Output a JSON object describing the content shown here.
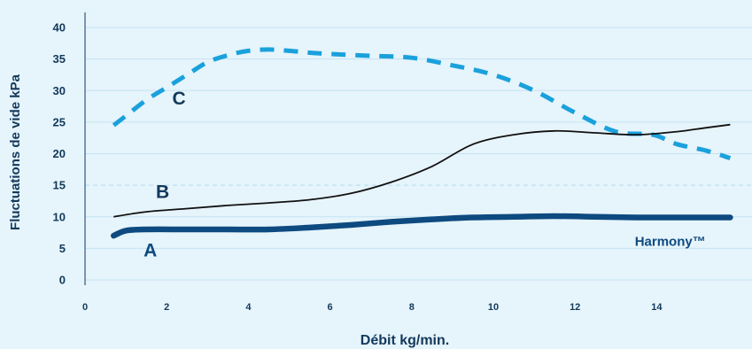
{
  "chart_data": {
    "type": "line",
    "xlabel": "Débit kg/min.",
    "ylabel": "Fluctuations de vide kPa",
    "xlim": [
      0,
      16
    ],
    "ylim": [
      0,
      40
    ],
    "x_ticks": [
      "0",
      "2",
      "4",
      "6",
      "8",
      "10",
      "12",
      "14"
    ],
    "y_ticks": [
      "0",
      "5",
      "10",
      "15",
      "20",
      "25",
      "30",
      "35",
      "40"
    ],
    "grid": true,
    "reference_line": 15,
    "colors": {
      "background": "#e6f4fb",
      "grid": "#c4e3f3",
      "axis": "#12395b",
      "A": "#0d4a80",
      "B": "#111111",
      "C": "#1aa1dc"
    },
    "series": [
      {
        "name": "C",
        "style": "dashed",
        "x": [
          0.7,
          1.0,
          1.5,
          2.0,
          2.5,
          3.0,
          3.5,
          4.0,
          4.5,
          5.0,
          5.5,
          6.0,
          7.0,
          8.0,
          9.0,
          10.0,
          11.0,
          12.0,
          13.0,
          13.9,
          14.5,
          15.2,
          15.8
        ],
        "values": [
          24.5,
          26.0,
          28.5,
          30.5,
          32.5,
          34.5,
          35.6,
          36.3,
          36.5,
          36.3,
          36.0,
          35.8,
          35.5,
          35.2,
          34.0,
          32.5,
          30.0,
          26.5,
          23.5,
          23.0,
          21.5,
          20.5,
          19.3
        ]
      },
      {
        "name": "B",
        "style": "solid",
        "x": [
          0.7,
          1.5,
          2.5,
          3.5,
          4.5,
          5.5,
          6.5,
          7.5,
          8.5,
          9.5,
          10.5,
          11.5,
          12.5,
          13.5,
          14.5,
          15.2,
          15.8
        ],
        "values": [
          10.0,
          10.8,
          11.3,
          11.8,
          12.2,
          12.7,
          13.7,
          15.5,
          18.0,
          21.5,
          23.0,
          23.6,
          23.3,
          23.0,
          23.5,
          24.1,
          24.6
        ]
      },
      {
        "name": "A",
        "style": "thick",
        "x": [
          0.7,
          1.0,
          1.5,
          2.5,
          3.5,
          4.5,
          5.5,
          6.5,
          7.5,
          8.5,
          9.5,
          10.5,
          11.5,
          12.5,
          13.5,
          14.5,
          15.8
        ],
        "values": [
          7.0,
          7.8,
          8.0,
          8.0,
          8.0,
          8.0,
          8.3,
          8.7,
          9.2,
          9.6,
          9.9,
          10.0,
          10.1,
          10.0,
          9.9,
          9.9,
          9.9
        ]
      }
    ],
    "labels": [
      {
        "name": "label-c",
        "text": "C",
        "x": 2.3,
        "y": 27.8,
        "color": "#12395b"
      },
      {
        "name": "label-b",
        "text": "B",
        "x": 1.9,
        "y": 13.0,
        "color": "#12395b"
      },
      {
        "name": "label-a",
        "text": "A",
        "x": 1.6,
        "y": 3.7,
        "color": "#0d4a80"
      },
      {
        "name": "label-harmony",
        "text": "Harmony™",
        "x": 15.2,
        "y": 5.4,
        "color": "#0d4a80"
      }
    ]
  }
}
